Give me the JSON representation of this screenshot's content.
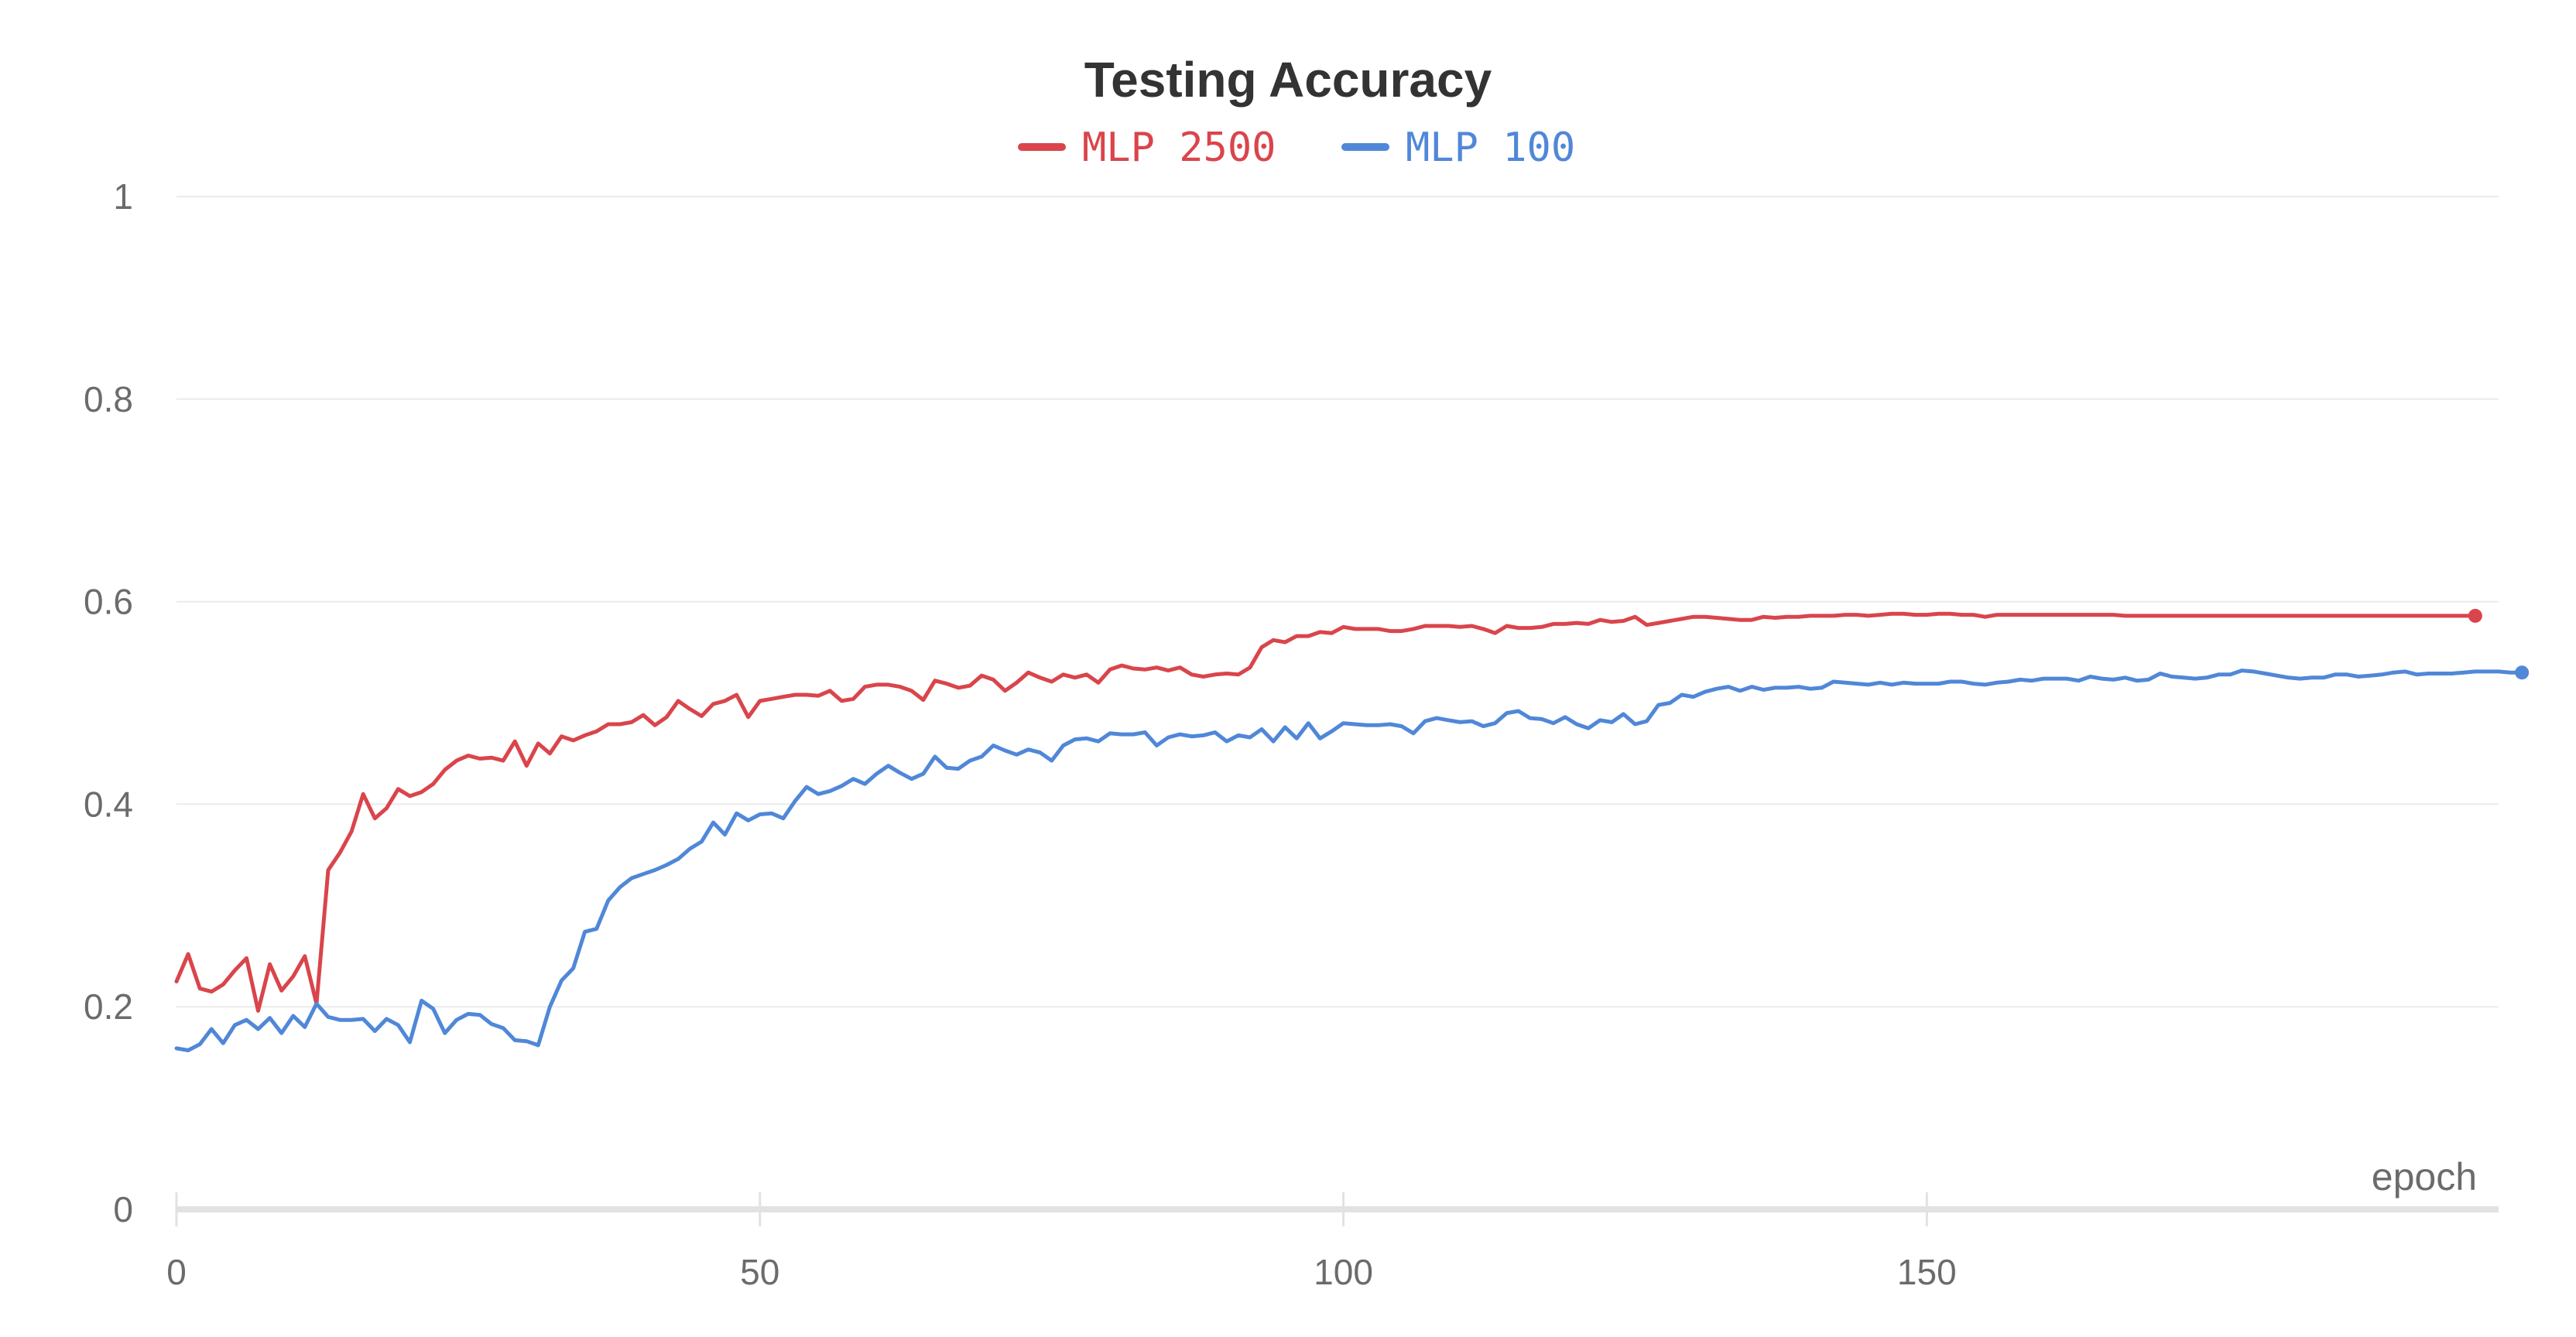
{
  "chart_data": {
    "type": "line",
    "title": "Testing Accuracy",
    "xlabel": "epoch",
    "ylabel": "",
    "xlim": [
      0,
      199
    ],
    "ylim": [
      0,
      1
    ],
    "x_ticks": [
      0,
      50,
      100,
      150
    ],
    "y_ticks": [
      0,
      0.2,
      0.4,
      0.6,
      0.8,
      1
    ],
    "y_tick_labels": [
      "0",
      "0.2",
      "0.4",
      "0.6",
      "0.8",
      "1"
    ],
    "x_tick_labels": [
      "0",
      "50",
      "100",
      "150"
    ],
    "grid": true,
    "legend_position": "top-center",
    "series": [
      {
        "name": "MLP 2500",
        "color": "#d9454b",
        "values": [
          0.225,
          0.252,
          0.218,
          0.215,
          0.222,
          0.236,
          0.248,
          0.196,
          0.242,
          0.216,
          0.23,
          0.25,
          0.203,
          0.335,
          0.352,
          0.373,
          0.41,
          0.386,
          0.396,
          0.415,
          0.408,
          0.412,
          0.42,
          0.434,
          0.443,
          0.448,
          0.445,
          0.446,
          0.443,
          0.462,
          0.438,
          0.46,
          0.45,
          0.467,
          0.463,
          0.468,
          0.472,
          0.479,
          0.479,
          0.481,
          0.488,
          0.478,
          0.486,
          0.502,
          0.494,
          0.487,
          0.499,
          0.502,
          0.508,
          0.486,
          0.502,
          0.504,
          0.506,
          0.508,
          0.508,
          0.507,
          0.512,
          0.502,
          0.504,
          0.516,
          0.518,
          0.518,
          0.516,
          0.512,
          0.503,
          0.522,
          0.519,
          0.515,
          0.517,
          0.527,
          0.523,
          0.512,
          0.52,
          0.53,
          0.525,
          0.521,
          0.528,
          0.525,
          0.528,
          0.52,
          0.533,
          0.537,
          0.534,
          0.533,
          0.535,
          0.532,
          0.535,
          0.528,
          0.526,
          0.528,
          0.529,
          0.528,
          0.535,
          0.555,
          0.562,
          0.56,
          0.566,
          0.566,
          0.57,
          0.569,
          0.575,
          0.573,
          0.573,
          0.573,
          0.571,
          0.571,
          0.573,
          0.576,
          0.576,
          0.576,
          0.575,
          0.576,
          0.573,
          0.569,
          0.576,
          0.574,
          0.574,
          0.575,
          0.578,
          0.578,
          0.579,
          0.578,
          0.582,
          0.58,
          0.581,
          0.585,
          0.577,
          0.579,
          0.581,
          0.583,
          0.585,
          0.585,
          0.584,
          0.583,
          0.582,
          0.582,
          0.585,
          0.584,
          0.585,
          0.585,
          0.586,
          0.586,
          0.586,
          0.587,
          0.587,
          0.586,
          0.587,
          0.588,
          0.588,
          0.587,
          0.587,
          0.588,
          0.588,
          0.587,
          0.587,
          0.585,
          0.587,
          0.587,
          0.587,
          0.587,
          0.587,
          0.587,
          0.587,
          0.587,
          0.587,
          0.587,
          0.587,
          0.586,
          0.586,
          0.586,
          0.586,
          0.586,
          0.586,
          0.586,
          0.586,
          0.586,
          0.586,
          0.586,
          0.586,
          0.586,
          0.586,
          0.586,
          0.586,
          0.586,
          0.586,
          0.586,
          0.586,
          0.586,
          0.586,
          0.586,
          0.586,
          0.586,
          0.586,
          0.586,
          0.586,
          0.586,
          0.586,
          0.586
        ]
      },
      {
        "name": "MLP 100",
        "color": "#5087d8",
        "values": [
          0.159,
          0.157,
          0.163,
          0.178,
          0.164,
          0.182,
          0.187,
          0.178,
          0.189,
          0.174,
          0.191,
          0.18,
          0.203,
          0.19,
          0.187,
          0.187,
          0.188,
          0.176,
          0.188,
          0.182,
          0.165,
          0.206,
          0.198,
          0.174,
          0.187,
          0.193,
          0.192,
          0.183,
          0.179,
          0.167,
          0.166,
          0.162,
          0.2,
          0.226,
          0.238,
          0.274,
          0.277,
          0.305,
          0.318,
          0.327,
          0.331,
          0.335,
          0.34,
          0.346,
          0.356,
          0.363,
          0.382,
          0.37,
          0.391,
          0.384,
          0.39,
          0.391,
          0.386,
          0.403,
          0.417,
          0.41,
          0.413,
          0.418,
          0.425,
          0.42,
          0.43,
          0.438,
          0.431,
          0.425,
          0.43,
          0.447,
          0.436,
          0.435,
          0.443,
          0.447,
          0.458,
          0.453,
          0.449,
          0.454,
          0.451,
          0.443,
          0.458,
          0.464,
          0.465,
          0.462,
          0.47,
          0.469,
          0.469,
          0.471,
          0.458,
          0.466,
          0.469,
          0.467,
          0.468,
          0.471,
          0.462,
          0.468,
          0.466,
          0.474,
          0.462,
          0.476,
          0.465,
          0.48,
          0.465,
          0.472,
          0.48,
          0.479,
          0.478,
          0.478,
          0.479,
          0.477,
          0.47,
          0.482,
          0.485,
          0.483,
          0.481,
          0.482,
          0.477,
          0.48,
          0.49,
          0.492,
          0.485,
          0.484,
          0.48,
          0.486,
          0.479,
          0.475,
          0.483,
          0.481,
          0.489,
          0.479,
          0.482,
          0.498,
          0.5,
          0.508,
          0.506,
          0.511,
          0.514,
          0.516,
          0.512,
          0.516,
          0.513,
          0.515,
          0.515,
          0.516,
          0.514,
          0.515,
          0.521,
          0.52,
          0.519,
          0.518,
          0.52,
          0.518,
          0.52,
          0.519,
          0.519,
          0.519,
          0.521,
          0.521,
          0.519,
          0.518,
          0.52,
          0.521,
          0.523,
          0.522,
          0.524,
          0.524,
          0.524,
          0.522,
          0.526,
          0.524,
          0.523,
          0.525,
          0.522,
          0.523,
          0.529,
          0.526,
          0.525,
          0.524,
          0.525,
          0.528,
          0.528,
          0.532,
          0.531,
          0.529,
          0.527,
          0.525,
          0.524,
          0.525,
          0.525,
          0.528,
          0.528,
          0.526,
          0.527,
          0.528,
          0.53,
          0.531,
          0.528,
          0.529,
          0.529,
          0.529,
          0.53,
          0.531,
          0.531,
          0.531,
          0.53,
          0.53
        ]
      }
    ]
  }
}
